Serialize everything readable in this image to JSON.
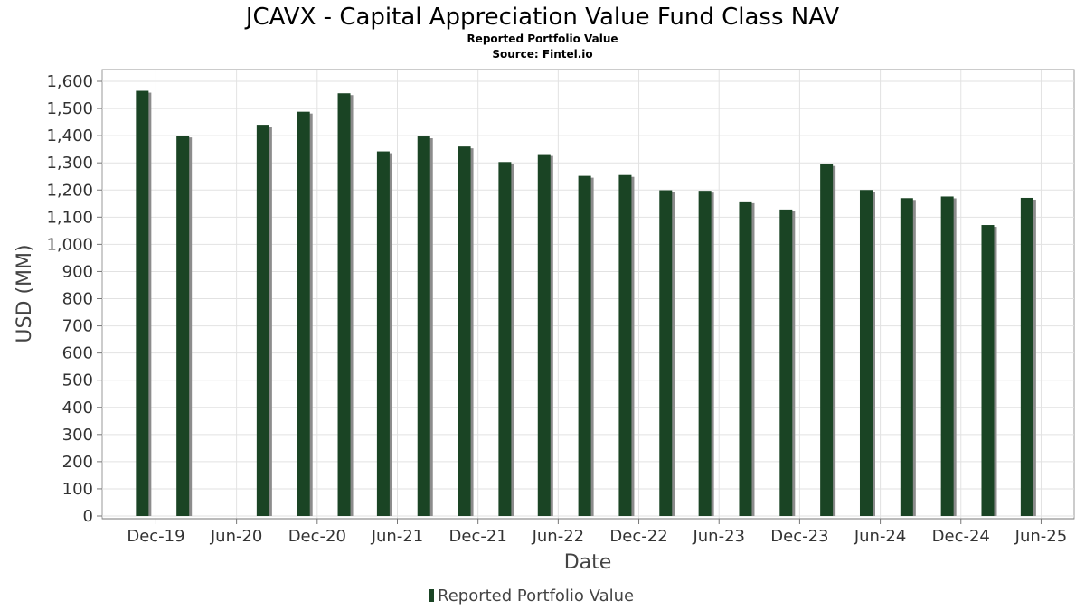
{
  "chart_data": {
    "type": "bar",
    "title": "JCAVX - Capital Appreciation Value Fund Class NAV",
    "subtitle_lines": [
      "Reported Portfolio Value",
      "Source: Fintel.io"
    ],
    "xlabel": "Date",
    "ylabel": "USD (MM)",
    "ylim": [
      0,
      1650
    ],
    "yticks": [
      0,
      100,
      200,
      300,
      400,
      500,
      600,
      700,
      800,
      900,
      1000,
      1100,
      1200,
      1300,
      1400,
      1500,
      1600
    ],
    "ytick_labels": [
      "0",
      "100",
      "200",
      "300",
      "400",
      "500",
      "600",
      "700",
      "800",
      "900",
      "1,000",
      "1,100",
      "1,200",
      "1,300",
      "1,400",
      "1,500",
      "1,600"
    ],
    "xlim": [
      "2019-08-01",
      "2025-08-15"
    ],
    "xticks": [
      {
        "date": "2019-12-01",
        "label": "Dec-19"
      },
      {
        "date": "2020-06-01",
        "label": "Jun-20"
      },
      {
        "date": "2020-12-01",
        "label": "Dec-20"
      },
      {
        "date": "2021-06-01",
        "label": "Jun-21"
      },
      {
        "date": "2021-12-01",
        "label": "Dec-21"
      },
      {
        "date": "2022-06-01",
        "label": "Jun-22"
      },
      {
        "date": "2022-12-01",
        "label": "Dec-22"
      },
      {
        "date": "2023-06-01",
        "label": "Jun-23"
      },
      {
        "date": "2023-12-01",
        "label": "Dec-23"
      },
      {
        "date": "2024-06-01",
        "label": "Jun-24"
      },
      {
        "date": "2024-12-01",
        "label": "Dec-24"
      },
      {
        "date": "2025-06-01",
        "label": "Jun-25"
      }
    ],
    "grid": true,
    "legend_position": "bottom-center",
    "series": [
      {
        "name": "Reported Portfolio Value",
        "color": "#1a4424",
        "shadow_color": "#8c8c8c",
        "points": [
          {
            "x": "2019-10-31",
            "y": 1565
          },
          {
            "x": "2020-01-31",
            "y": 1400
          },
          {
            "x": "2020-07-31",
            "y": 1440
          },
          {
            "x": "2020-10-31",
            "y": 1488
          },
          {
            "x": "2021-01-31",
            "y": 1556
          },
          {
            "x": "2021-04-30",
            "y": 1342
          },
          {
            "x": "2021-07-31",
            "y": 1397
          },
          {
            "x": "2021-10-31",
            "y": 1360
          },
          {
            "x": "2022-01-31",
            "y": 1303
          },
          {
            "x": "2022-04-30",
            "y": 1332
          },
          {
            "x": "2022-07-31",
            "y": 1252
          },
          {
            "x": "2022-10-31",
            "y": 1255
          },
          {
            "x": "2023-01-31",
            "y": 1199
          },
          {
            "x": "2023-04-30",
            "y": 1197
          },
          {
            "x": "2023-07-31",
            "y": 1158
          },
          {
            "x": "2023-10-31",
            "y": 1128
          },
          {
            "x": "2024-01-31",
            "y": 1295
          },
          {
            "x": "2024-04-30",
            "y": 1200
          },
          {
            "x": "2024-07-31",
            "y": 1170
          },
          {
            "x": "2024-10-31",
            "y": 1176
          },
          {
            "x": "2025-01-31",
            "y": 1071
          },
          {
            "x": "2025-04-30",
            "y": 1171
          }
        ]
      }
    ]
  }
}
